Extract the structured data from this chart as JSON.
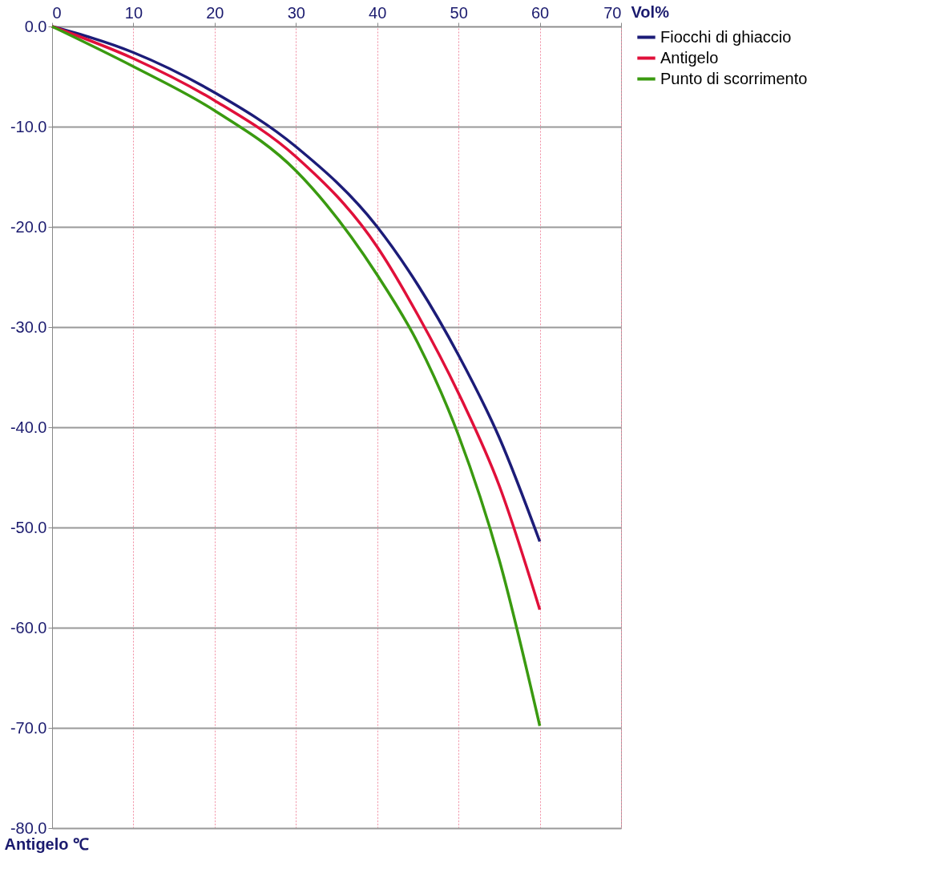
{
  "chart_data": {
    "type": "line",
    "xlabel": "Vol%",
    "ylabel": "Antigelo ℃",
    "x": [
      0,
      10,
      20,
      30,
      40,
      45,
      50,
      55,
      60
    ],
    "series": [
      {
        "name": "Fiocchi di ghiaccio",
        "color": "#1c1c78",
        "values": [
          0,
          -2.6,
          -6.6,
          -12,
          -20,
          -25.8,
          -32.8,
          -41,
          -51.4
        ]
      },
      {
        "name": "Antigelo",
        "color": "#e0103a",
        "values": [
          0,
          -3.2,
          -7.4,
          -13,
          -22,
          -28.8,
          -36.6,
          -45.8,
          -58.2
        ]
      },
      {
        "name": "Punto di scorrimento",
        "color": "#3a9a10",
        "values": [
          0,
          -4,
          -8.4,
          -14.4,
          -24.8,
          -31.6,
          -40.8,
          -53.2,
          -69.8
        ]
      }
    ],
    "xlim": [
      0,
      70
    ],
    "xticks": [
      0,
      10,
      20,
      30,
      40,
      50,
      60,
      70
    ],
    "ylim": [
      -80,
      0
    ],
    "yticks": [
      {
        "value": 0,
        "label": "0.0"
      },
      {
        "value": -10,
        "label": "-10.0"
      },
      {
        "value": -20,
        "label": "-20.0"
      },
      {
        "value": -30,
        "label": "-30.0"
      },
      {
        "value": -40,
        "label": "-40.0"
      },
      {
        "value": -50,
        "label": "-50.0"
      },
      {
        "value": -60,
        "label": "-60.0"
      },
      {
        "value": -70,
        "label": "-70.0"
      },
      {
        "value": -80,
        "label": "-80.0"
      }
    ],
    "grid": true,
    "legend": "right",
    "marker": "none",
    "line_style": "solid"
  }
}
